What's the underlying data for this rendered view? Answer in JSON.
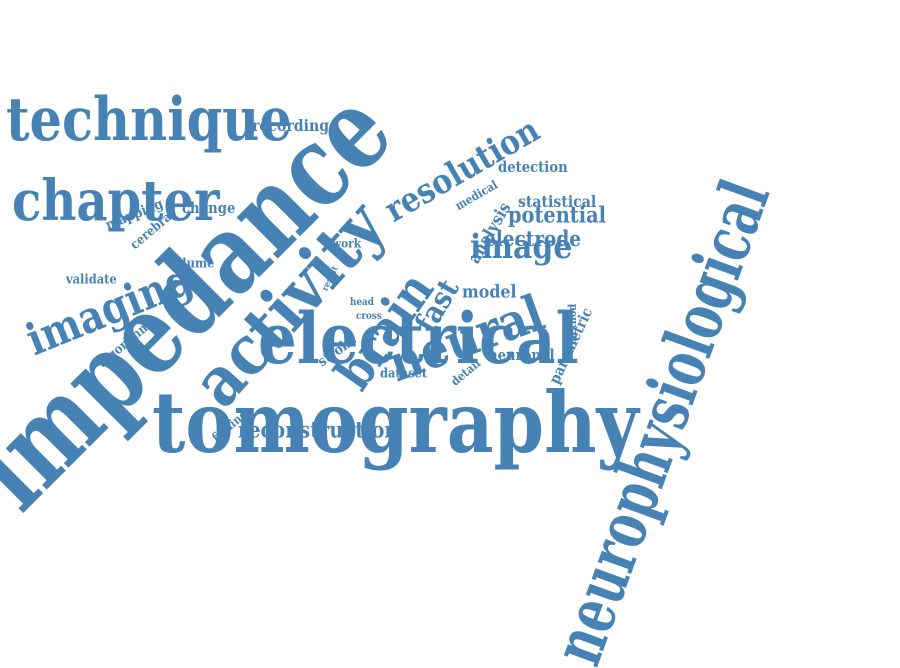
{
  "color": "#4682b4",
  "words": [
    {
      "text": "impedance",
      "angle": "diagonal"
    },
    {
      "text": "neurophysiological",
      "angle": "diagonal"
    },
    {
      "text": "tomography",
      "angle": "horizontal"
    },
    {
      "text": "electrical",
      "angle": "horizontal"
    },
    {
      "text": "activity",
      "angle": "diagonal"
    },
    {
      "text": "technique",
      "angle": "horizontal"
    },
    {
      "text": "chapter",
      "angle": "horizontal"
    },
    {
      "text": "brain",
      "angle": "diagonal"
    },
    {
      "text": "neural",
      "angle": "diagonal"
    },
    {
      "text": "imaging",
      "angle": "diagonal"
    },
    {
      "text": "resolution",
      "angle": "diagonal"
    },
    {
      "text": "image",
      "angle": "horizontal"
    },
    {
      "text": "reconstruction",
      "angle": "horizontal"
    },
    {
      "text": "potential",
      "angle": "horizontal"
    },
    {
      "text": "fast",
      "angle": "diagonal"
    },
    {
      "text": "electrode",
      "angle": "horizontal"
    },
    {
      "text": "recording",
      "angle": "horizontal"
    },
    {
      "text": "model",
      "angle": "horizontal"
    },
    {
      "text": "statistical",
      "angle": "horizontal"
    },
    {
      "text": "detection",
      "angle": "horizontal"
    },
    {
      "text": "analysis",
      "angle": "diagonal"
    },
    {
      "text": "change",
      "angle": "horizontal"
    },
    {
      "text": "mapping",
      "angle": "diagonal"
    },
    {
      "text": "cerebral",
      "angle": "diagonal"
    },
    {
      "text": "algorithm",
      "angle": "diagonal"
    },
    {
      "text": "parametric",
      "angle": "diagonal"
    },
    {
      "text": "neuronal",
      "angle": "horizontal"
    },
    {
      "text": "stroke",
      "angle": "diagonal"
    },
    {
      "text": "medical",
      "angle": "diagonal"
    },
    {
      "text": "method",
      "angle": "vertical"
    },
    {
      "text": "detail",
      "angle": "diagonal"
    },
    {
      "text": "dataset",
      "angle": "horizontal"
    },
    {
      "text": "volume",
      "angle": "horizontal"
    },
    {
      "text": "validate",
      "angle": "horizontal"
    },
    {
      "text": "finding",
      "angle": "diagonal"
    },
    {
      "text": "work",
      "angle": "horizontal"
    },
    {
      "text": "result",
      "angle": "diagonal"
    },
    {
      "text": "head",
      "angle": "horizontal"
    },
    {
      "text": "cross",
      "angle": "horizontal"
    }
  ]
}
